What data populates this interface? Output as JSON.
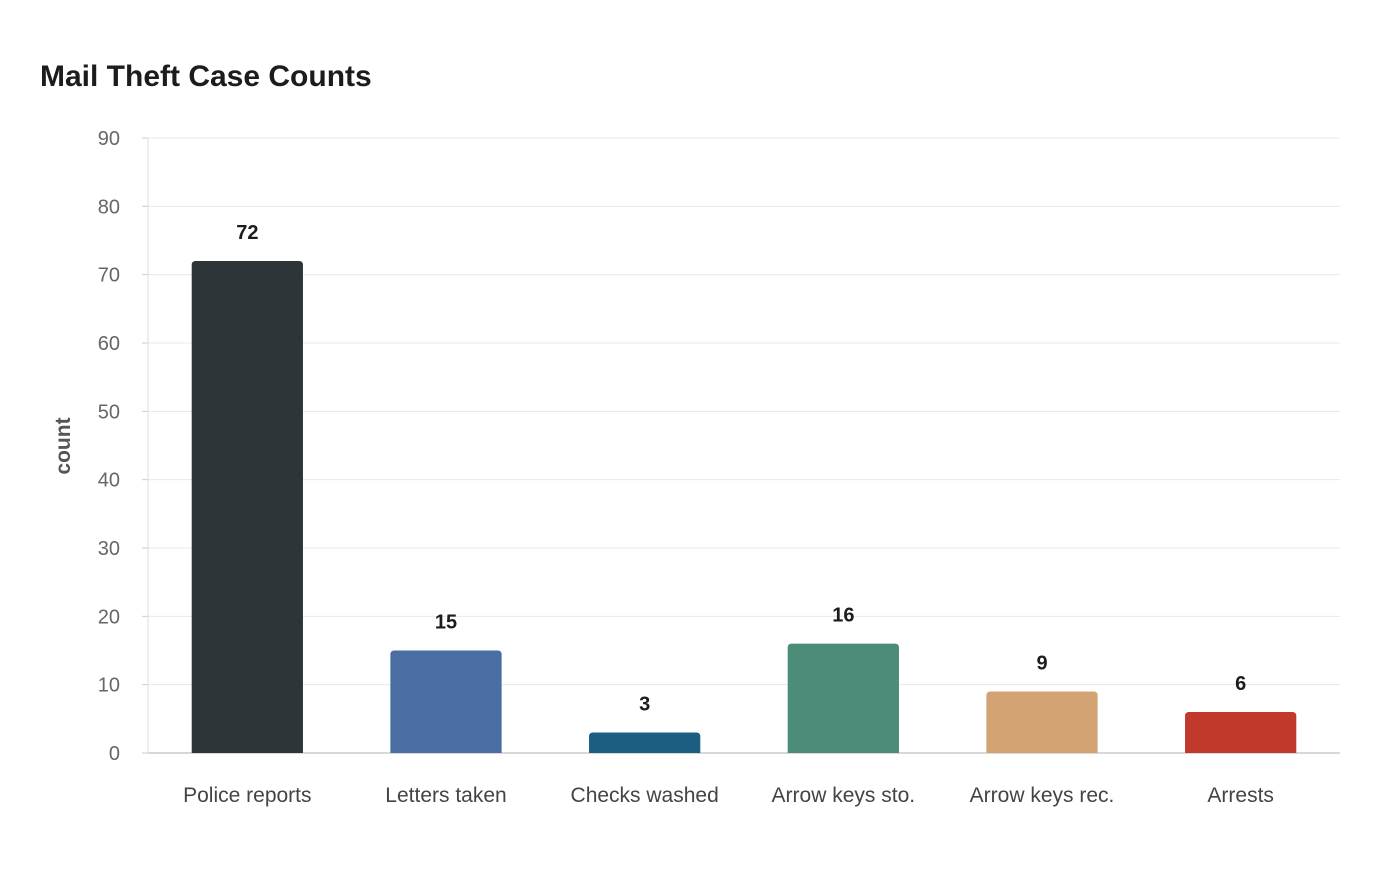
{
  "chart_data": {
    "type": "bar",
    "title": "Mail Theft Case Counts",
    "xlabel": "",
    "ylabel": "count",
    "categories": [
      "Police reports",
      "Letters taken",
      "Checks washed",
      "Arrow keys sto.",
      "Arrow keys rec.",
      "Arrests"
    ],
    "values": [
      72,
      15,
      3,
      16,
      9,
      6
    ],
    "colors": [
      "#2e3538",
      "#4a6ea3",
      "#1b5e82",
      "#4d8c79",
      "#d4a373",
      "#c0392b"
    ],
    "ylim": [
      0,
      90
    ],
    "yticks": [
      0,
      10,
      20,
      30,
      40,
      50,
      60,
      70,
      80,
      90
    ],
    "data_labels": [
      "72",
      "15",
      "3",
      "16",
      "9",
      "6"
    ],
    "grid": true,
    "legend": "none"
  }
}
